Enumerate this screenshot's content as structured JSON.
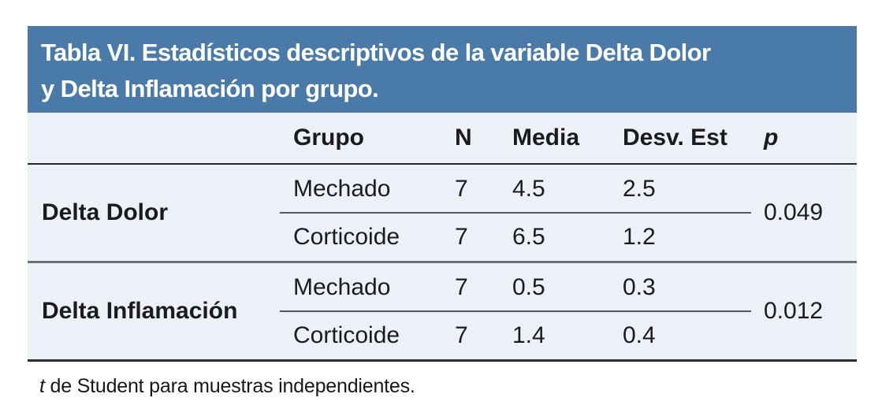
{
  "table": {
    "title_lines": [
      "Tabla VI. Estadísticos descriptivos de la variable Delta Dolor",
      "y Delta Inflamación por grupo."
    ],
    "columns": [
      "",
      "Grupo",
      "N",
      "Media",
      "Desv. Est",
      "p"
    ],
    "sections": [
      {
        "variable": "Delta Dolor",
        "p": "0.049",
        "rows": [
          {
            "grupo": "Mechado",
            "n": "7",
            "media": "4.5",
            "desv": "2.5"
          },
          {
            "grupo": "Corticoide",
            "n": "7",
            "media": "6.5",
            "desv": "1.2"
          }
        ]
      },
      {
        "variable": "Delta Inflamación",
        "p": "0.012",
        "rows": [
          {
            "grupo": "Mechado",
            "n": "7",
            "media": "0.5",
            "desv": "0.3"
          },
          {
            "grupo": "Corticoide",
            "n": "7",
            "media": "1.4",
            "desv": "0.4"
          }
        ]
      }
    ],
    "footnote_italic": "t",
    "footnote_text": " de Student para muestras independientes."
  },
  "colors": {
    "title_band_bg": "#4a7aa7",
    "title_text": "#ffffff",
    "row_bg": "#edf0f6",
    "header_rule": "#26282c",
    "section_rule": "#6e7077",
    "bottom_rule": "#2b2d31",
    "inner_rule": "#55575c",
    "text": "#1a1b1e"
  }
}
